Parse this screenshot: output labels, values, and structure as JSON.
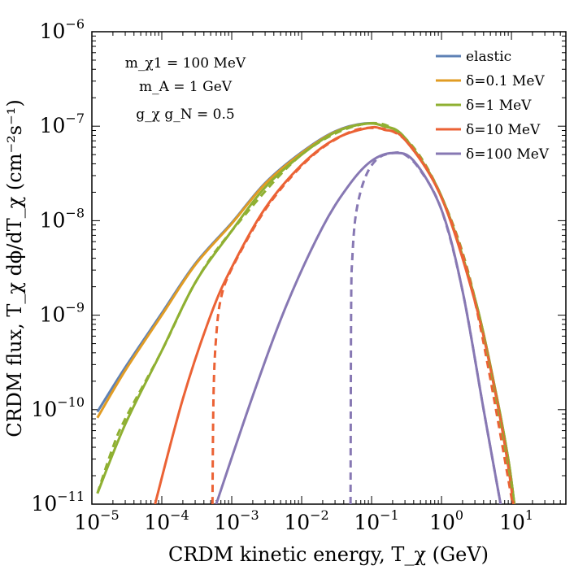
{
  "chart_data": {
    "type": "line",
    "x_scale": "log",
    "y_scale": "log",
    "xlim": [
      1e-05,
      60
    ],
    "ylim": [
      1e-11,
      1e-06
    ],
    "xlabel": "CRDM kinetic energy, T_χ (GeV)",
    "ylabel": "CRDM flux, T_χ dϕ/dT_χ (cm⁻²s⁻¹)",
    "x_ticks": [
      {
        "base": "10",
        "exp": "−5",
        "value": 1e-05
      },
      {
        "base": "10",
        "exp": "−4",
        "value": 0.0001
      },
      {
        "base": "10",
        "exp": "−3",
        "value": 0.001
      },
      {
        "base": "10",
        "exp": "−2",
        "value": 0.01
      },
      {
        "base": "10",
        "exp": "−1",
        "value": 0.1
      },
      {
        "base": "10",
        "exp": "0",
        "value": 1
      },
      {
        "base": "10",
        "exp": "1",
        "value": 10
      }
    ],
    "y_ticks": [
      {
        "base": "10",
        "exp": "−11",
        "value": 1e-11
      },
      {
        "base": "10",
        "exp": "−10",
        "value": 1e-10
      },
      {
        "base": "10",
        "exp": "−9",
        "value": 1e-09
      },
      {
        "base": "10",
        "exp": "−8",
        "value": 1e-08
      },
      {
        "base": "10",
        "exp": "−7",
        "value": 1e-07
      },
      {
        "base": "10",
        "exp": "−6",
        "value": 1e-06
      }
    ],
    "annotations": [
      "m_χ1 = 100 MeV",
      "m_A = 1 GeV",
      "g_χ g_N = 0.5"
    ],
    "legend_position": "top-right",
    "legend": [
      "elastic",
      "δ=0.1 MeV",
      "δ=1 MeV",
      "δ=10 MeV",
      "δ=100 MeV"
    ],
    "series": [
      {
        "name": "elastic",
        "color": "#5e81b5",
        "style": "solid",
        "x": [
          1.2e-05,
          3e-05,
          0.0001,
          0.0003,
          0.001,
          0.003,
          0.01,
          0.03,
          0.08,
          0.15,
          0.3,
          1,
          3,
          6,
          9,
          11
        ],
        "y": [
          9.5e-11,
          2.8e-10,
          1.05e-09,
          3.5e-09,
          9.5e-09,
          2.5e-08,
          5.3e-08,
          8.8e-08,
          1.07e-07,
          1e-07,
          7.5e-08,
          1.8e-08,
          1.5e-09,
          1.5e-10,
          3e-11,
          1e-11
        ]
      },
      {
        "name": "δ=0.1 MeV",
        "color": "#e19c24",
        "style": "solid",
        "x": [
          1.2e-05,
          3e-05,
          0.0001,
          0.0003,
          0.001,
          0.003,
          0.01,
          0.03,
          0.08,
          0.15,
          0.3,
          1,
          3,
          6,
          9,
          11
        ],
        "y": [
          8.2e-11,
          2.6e-10,
          1e-09,
          3.4e-09,
          9.3e-09,
          2.45e-08,
          5.2e-08,
          8.7e-08,
          1.06e-07,
          1e-07,
          7.5e-08,
          1.8e-08,
          1.5e-09,
          1.5e-10,
          3e-11,
          1e-11
        ]
      },
      {
        "name": "δ=1 MeV",
        "color": "#8fb032",
        "style": "solid",
        "x": [
          1.2e-05,
          3e-05,
          0.0001,
          0.0003,
          0.001,
          0.003,
          0.01,
          0.03,
          0.08,
          0.15,
          0.3,
          1,
          3,
          6,
          9,
          11
        ],
        "y": [
          1.3e-11,
          7e-11,
          4.2e-10,
          2.2e-09,
          7.8e-09,
          2.25e-08,
          5e-08,
          8.6e-08,
          1.06e-07,
          1e-07,
          7.5e-08,
          1.8e-08,
          1.5e-09,
          1.5e-10,
          3e-11,
          1e-11
        ]
      },
      {
        "name": "δ=1 MeV (dashed)",
        "color": "#8fb032",
        "style": "dashed",
        "x": [
          1.2e-05,
          2e-05,
          3e-05,
          0.0001,
          0.0003,
          0.001,
          0.01,
          0.08,
          0.3,
          1,
          3,
          11
        ],
        "y": [
          1.3e-11,
          4e-11,
          8e-11,
          4.2e-10,
          2.2e-09,
          7.8e-09,
          5e-08,
          1.06e-07,
          7.5e-08,
          1.8e-08,
          1.5e-09,
          1e-11
        ]
      },
      {
        "name": "δ=10 MeV",
        "color": "#eb6235",
        "style": "solid",
        "x": [
          8e-05,
          0.0002,
          0.0005,
          0.001,
          0.003,
          0.01,
          0.03,
          0.09,
          0.15,
          0.3,
          1,
          3,
          6,
          9,
          11
        ],
        "y": [
          1e-11,
          1.3e-10,
          1e-09,
          3.2e-09,
          1.35e-08,
          3.9e-08,
          7.3e-08,
          9.6e-08,
          9.2e-08,
          7.2e-08,
          1.75e-08,
          1.4e-09,
          1.4e-10,
          2.5e-11,
          8e-12
        ]
      },
      {
        "name": "δ=10 MeV (dashed)",
        "color": "#eb6235",
        "style": "dashed",
        "x": [
          0.00053,
          0.00055,
          0.0006,
          0.0007,
          0.001,
          0.003,
          0.01,
          0.03,
          0.09,
          0.3,
          1,
          3,
          11
        ],
        "y": [
          1e-11,
          1.5e-10,
          6e-10,
          1.5e-09,
          3.1e-09,
          1.3e-08,
          3.8e-08,
          7.2e-08,
          9.6e-08,
          7.2e-08,
          1.75e-08,
          1.4e-09,
          8e-12
        ]
      },
      {
        "name": "δ=100 MeV",
        "color": "#8778b3",
        "style": "solid",
        "x": [
          0.0006,
          0.002,
          0.006,
          0.02,
          0.05,
          0.1,
          0.2,
          0.4,
          1,
          2,
          4,
          7
        ],
        "y": [
          1e-11,
          1.4e-10,
          1.25e-09,
          8.6e-09,
          2.5e-08,
          4.3e-08,
          5.2e-08,
          4.3e-08,
          1.3e-08,
          1.8e-09,
          1e-10,
          1e-11
        ]
      },
      {
        "name": "δ=100 MeV (dashed)",
        "color": "#8778b3",
        "style": "dashed",
        "x": [
          0.05,
          0.051,
          0.053,
          0.06,
          0.08,
          0.12,
          0.2,
          0.3,
          0.5,
          1,
          2,
          4,
          7
        ],
        "y": [
          1e-11,
          1.2e-09,
          4e-09,
          1.2e-08,
          2.8e-08,
          4.5e-08,
          5.2e-08,
          5e-08,
          3.4e-08,
          1.3e-08,
          1.8e-09,
          1e-10,
          1e-11
        ]
      }
    ]
  }
}
